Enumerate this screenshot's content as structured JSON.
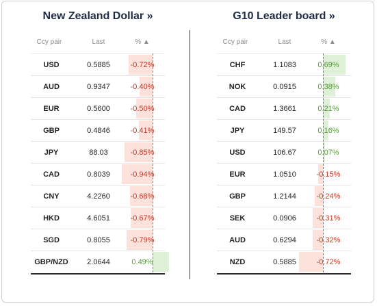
{
  "colors": {
    "negative": "#c0392b",
    "positive": "#5a9a3c",
    "negative_bg": "#fde2dc",
    "positive_bg": "#dff0d8"
  },
  "left": {
    "title": "New Zealand Dollar »",
    "headers": {
      "pair": "Ccy pair",
      "last": "Last",
      "pct": "% ▲"
    },
    "rows": [
      {
        "pair": "USD",
        "last": "0.5885",
        "pct": "-0.72%",
        "change": -0.72
      },
      {
        "pair": "AUD",
        "last": "0.9347",
        "pct": "-0.40%",
        "change": -0.4
      },
      {
        "pair": "EUR",
        "last": "0.5600",
        "pct": "-0.50%",
        "change": -0.5
      },
      {
        "pair": "GBP",
        "last": "0.4846",
        "pct": "-0.41%",
        "change": -0.41
      },
      {
        "pair": "JPY",
        "last": "88.03",
        "pct": "-0.85%",
        "change": -0.85
      },
      {
        "pair": "CAD",
        "last": "0.8039",
        "pct": "-0.94%",
        "change": -0.94
      },
      {
        "pair": "CNY",
        "last": "4.2260",
        "pct": "-0.68%",
        "change": -0.68
      },
      {
        "pair": "HKD",
        "last": "4.6051",
        "pct": "-0.67%",
        "change": -0.67
      },
      {
        "pair": "SGD",
        "last": "0.8055",
        "pct": "-0.79%",
        "change": -0.79
      },
      {
        "pair": "GBP/NZD",
        "last": "2.0644",
        "pct": "0.49%",
        "change": 0.49
      }
    ]
  },
  "right": {
    "title": "G10 Leader board »",
    "headers": {
      "pair": "Ccy pair",
      "last": "Last",
      "pct": "% ▲"
    },
    "rows": [
      {
        "pair": "CHF",
        "last": "1.1083",
        "pct": "0.69%",
        "change": 0.69
      },
      {
        "pair": "NOK",
        "last": "0.0915",
        "pct": "0.38%",
        "change": 0.38
      },
      {
        "pair": "CAD",
        "last": "1.3661",
        "pct": "0.21%",
        "change": 0.21
      },
      {
        "pair": "JPY",
        "last": "149.57",
        "pct": "0.16%",
        "change": 0.16
      },
      {
        "pair": "USD",
        "last": "106.67",
        "pct": "0.07%",
        "change": 0.07
      },
      {
        "pair": "EUR",
        "last": "1.0510",
        "pct": "-0.15%",
        "change": -0.15
      },
      {
        "pair": "GBP",
        "last": "1.2144",
        "pct": "-0.24%",
        "change": -0.24
      },
      {
        "pair": "SEK",
        "last": "0.0906",
        "pct": "-0.31%",
        "change": -0.31
      },
      {
        "pair": "AUD",
        "last": "0.6294",
        "pct": "-0.32%",
        "change": -0.32
      },
      {
        "pair": "NZD",
        "last": "0.5885",
        "pct": "-0.72%",
        "change": -0.72
      }
    ]
  }
}
